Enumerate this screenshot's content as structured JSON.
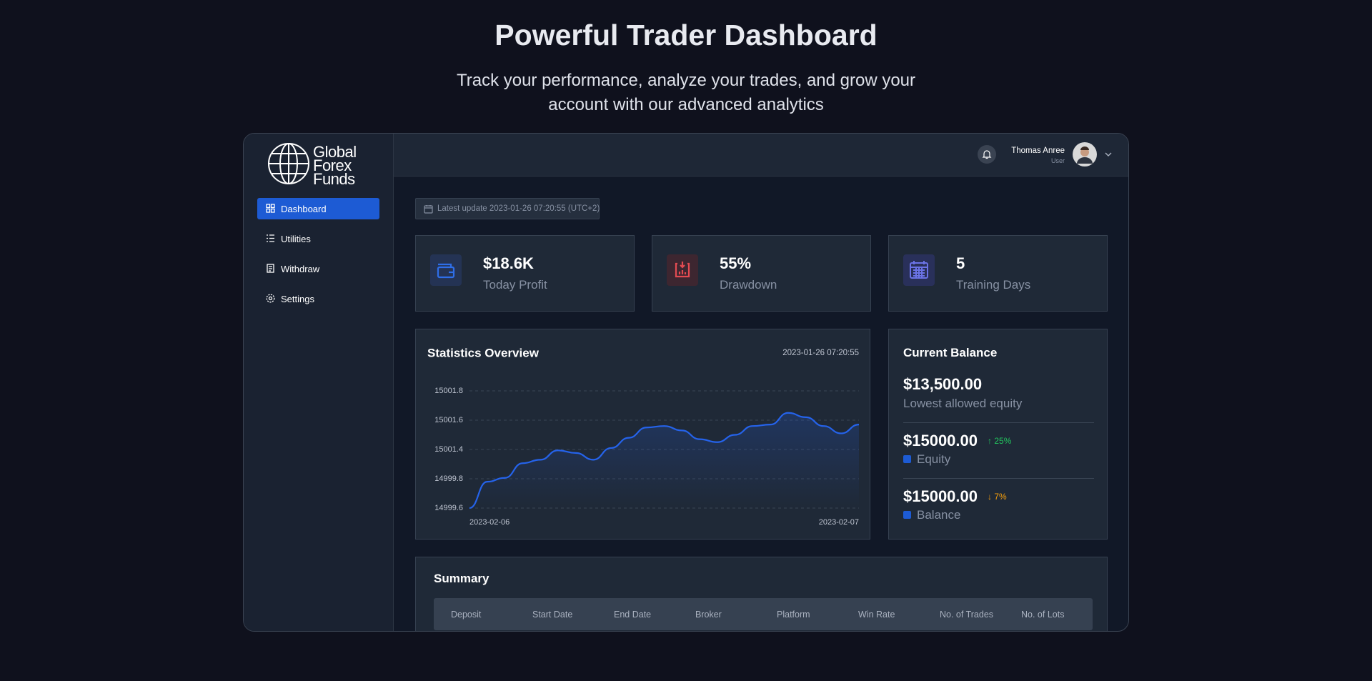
{
  "header": {
    "title": "Powerful Trader Dashboard",
    "subtitle": "Track your performance, analyze your trades, and grow your account with our advanced analytics"
  },
  "sidebar": {
    "logo": [
      "Global",
      "Forex",
      "Funds"
    ],
    "nav": [
      "Dashboard",
      "Utilities",
      "Withdraw",
      "Settings"
    ]
  },
  "topbar": {
    "user_name": "Thomas Anree",
    "user_role": "User"
  },
  "latest_update": "Latest update 2023-01-26 07:20:55 (UTC+2)",
  "stats": [
    {
      "value": "$18.6K",
      "label": "Today Profit"
    },
    {
      "value": "55%",
      "label": "Drawdown"
    },
    {
      "value": "5",
      "label": "Training Days"
    }
  ],
  "chart_data": {
    "type": "line",
    "title": "Statistics Overview",
    "subtitle": "2023-01-26 07:20:55",
    "categories": [
      "2023-02-06",
      null,
      null,
      null,
      null,
      null,
      null,
      null,
      null,
      null,
      null,
      null,
      null,
      null,
      null,
      null,
      null,
      null,
      null,
      null,
      null,
      null,
      "2023-02-07"
    ],
    "series": [
      {
        "name": "Balance",
        "color": "#2563eb",
        "values": [
          14999.6,
          14999.78,
          14999.85,
          15000.65,
          15000.84,
          15001.35,
          15001.21,
          15000.84,
          15001.41,
          15001.48,
          15001.55,
          15001.56,
          15001.53,
          15001.47,
          15001.45,
          15001.5,
          15001.56,
          15001.57,
          15001.65,
          15001.62,
          15001.56,
          15001.51,
          15001.57
        ]
      }
    ],
    "ylim": [
      14999.6,
      15001.8
    ],
    "yticks": [
      14999.6,
      14999.8,
      15001.4,
      15001.6,
      15001.8
    ],
    "grid": true
  },
  "balance": {
    "title": "Current Balance",
    "items": [
      {
        "amount": "$13,500.00",
        "label": "Lowest allowed equity"
      },
      {
        "amount": "$15000.00",
        "change": "25%",
        "label": "Equity"
      },
      {
        "amount": "$15000.00",
        "change": "7%",
        "label": "Balance"
      }
    ]
  },
  "summary": {
    "title": "Summary",
    "columns": [
      "Deposit",
      "Start Date",
      "End Date",
      "Broker",
      "Platform",
      "Win Rate",
      "No. of Trades",
      "No. of Lots"
    ]
  }
}
